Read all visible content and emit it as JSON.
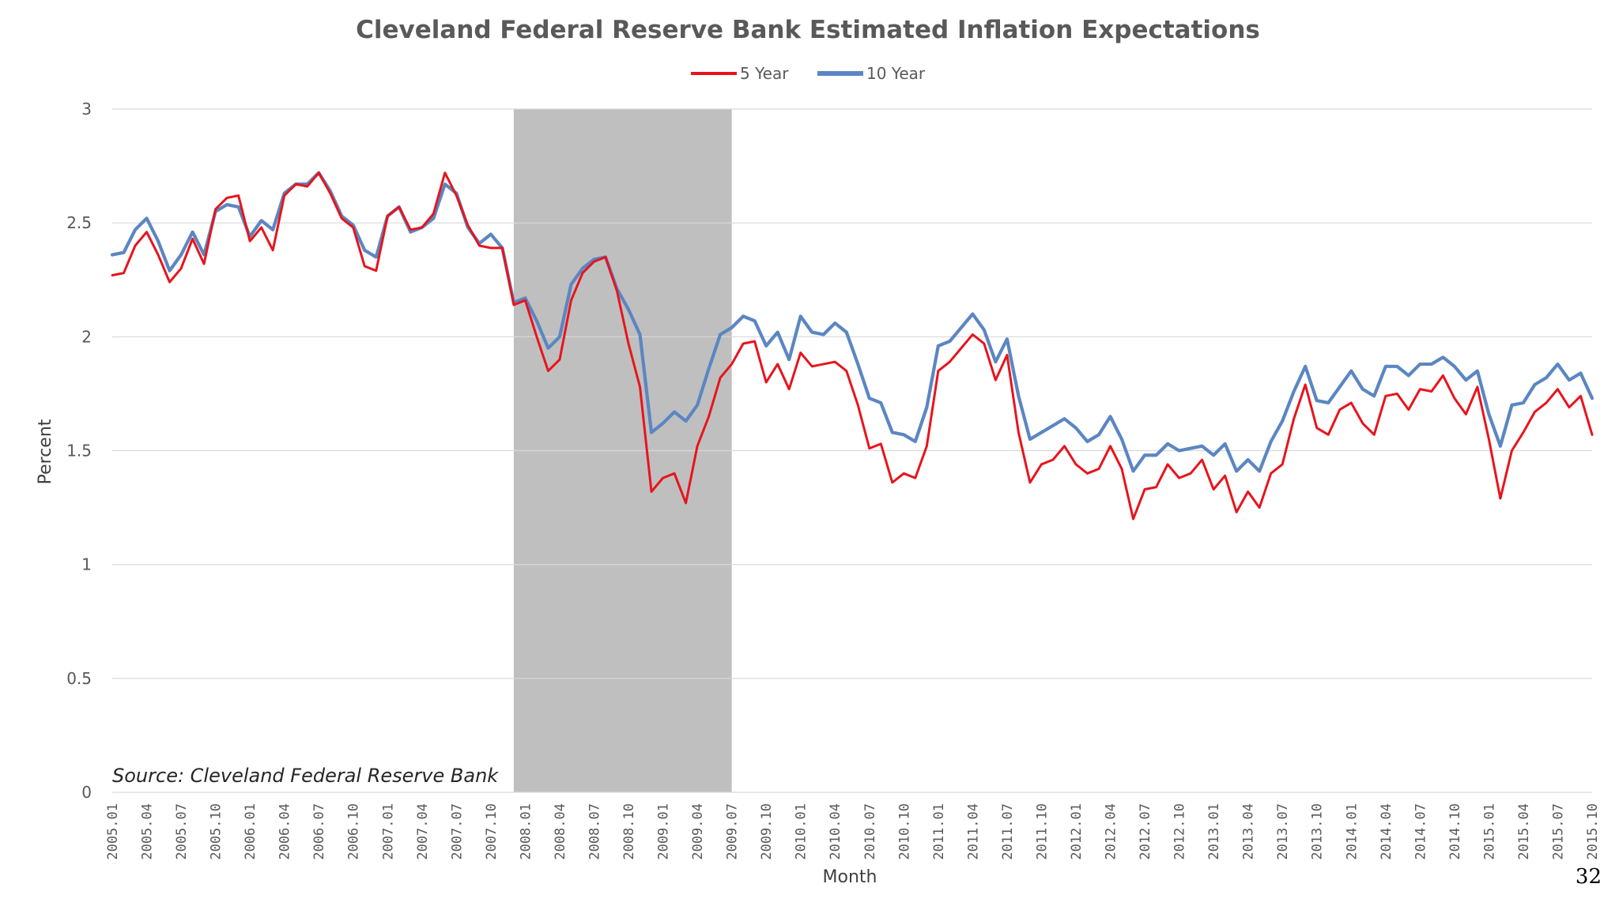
{
  "chart_data": {
    "type": "line",
    "title": "Cleveland Federal Reserve Bank Estimated Inflation Expectations",
    "xlabel": "Month",
    "ylabel": "Percent",
    "ylim": [
      0,
      3
    ],
    "yticks": [
      "0",
      "0.5",
      "1",
      "1.5",
      "2",
      "2.5",
      "3"
    ],
    "grid": true,
    "legend_position": "top-center",
    "x_tick_labels": [
      "2005.01",
      "2005.04",
      "2005.07",
      "2005.10",
      "2006.01",
      "2006.04",
      "2006.07",
      "2006.10",
      "2007.01",
      "2007.04",
      "2007.07",
      "2007.10",
      "2008.01",
      "2008.04",
      "2008.07",
      "2008.10",
      "2009.01",
      "2009.04",
      "2009.07",
      "2009.10",
      "2010.01",
      "2010.04",
      "2010.07",
      "2010.10",
      "2011.01",
      "2011.04",
      "2011.07",
      "2011.10",
      "2012.01",
      "2012.04",
      "2012.07",
      "2012.10",
      "2013.01",
      "2013.04",
      "2013.07",
      "2013.10",
      "2014.01",
      "2014.04",
      "2014.07",
      "2014.10",
      "2015.01",
      "2015.04",
      "2015.07",
      "2015.10"
    ],
    "x_start": "2005.01",
    "recession_shade": {
      "start_index": 35,
      "end_index": 54,
      "color": "#bfbfbf"
    },
    "series": [
      {
        "name": "5 Year",
        "color": "#e8141c",
        "values": [
          2.27,
          2.28,
          2.4,
          2.46,
          2.36,
          2.24,
          2.3,
          2.43,
          2.32,
          2.56,
          2.61,
          2.62,
          2.42,
          2.48,
          2.38,
          2.62,
          2.67,
          2.66,
          2.72,
          2.63,
          2.52,
          2.48,
          2.31,
          2.29,
          2.53,
          2.57,
          2.47,
          2.48,
          2.54,
          2.72,
          2.62,
          2.49,
          2.4,
          2.39,
          2.39,
          2.14,
          2.16,
          2.0,
          1.85,
          1.9,
          2.16,
          2.28,
          2.33,
          2.35,
          2.2,
          1.97,
          1.78,
          1.32,
          1.38,
          1.4,
          1.27,
          1.52,
          1.65,
          1.82,
          1.88,
          1.97,
          1.98,
          1.8,
          1.88,
          1.77,
          1.93,
          1.87,
          1.88,
          1.89,
          1.85,
          1.7,
          1.51,
          1.53,
          1.36,
          1.4,
          1.38,
          1.52,
          1.85,
          1.89,
          1.95,
          2.01,
          1.97,
          1.81,
          1.92,
          1.58,
          1.36,
          1.44,
          1.46,
          1.52,
          1.44,
          1.4,
          1.42,
          1.52,
          1.42,
          1.2,
          1.33,
          1.34,
          1.44,
          1.38,
          1.4,
          1.46,
          1.33,
          1.39,
          1.23,
          1.32,
          1.25,
          1.4,
          1.44,
          1.64,
          1.79,
          1.6,
          1.57,
          1.68,
          1.71,
          1.62,
          1.57,
          1.74,
          1.75,
          1.68,
          1.77,
          1.76,
          1.83,
          1.73,
          1.66,
          1.78,
          1.55,
          1.29,
          1.5,
          1.58,
          1.67,
          1.71,
          1.77,
          1.69,
          1.74,
          1.57
        ]
      },
      {
        "name": "10 Year",
        "color": "#5b86c2",
        "values": [
          2.36,
          2.37,
          2.47,
          2.52,
          2.42,
          2.29,
          2.36,
          2.46,
          2.36,
          2.55,
          2.58,
          2.57,
          2.44,
          2.51,
          2.47,
          2.63,
          2.67,
          2.67,
          2.72,
          2.64,
          2.53,
          2.49,
          2.38,
          2.35,
          2.53,
          2.57,
          2.46,
          2.48,
          2.52,
          2.67,
          2.63,
          2.48,
          2.41,
          2.45,
          2.39,
          2.15,
          2.17,
          2.07,
          1.95,
          2.0,
          2.23,
          2.3,
          2.34,
          2.35,
          2.21,
          2.12,
          2.01,
          1.58,
          1.62,
          1.67,
          1.63,
          1.7,
          1.86,
          2.01,
          2.04,
          2.09,
          2.07,
          1.96,
          2.02,
          1.9,
          2.09,
          2.02,
          2.01,
          2.06,
          2.02,
          1.88,
          1.73,
          1.71,
          1.58,
          1.57,
          1.54,
          1.69,
          1.96,
          1.98,
          2.04,
          2.1,
          2.03,
          1.89,
          1.99,
          1.74,
          1.55,
          1.58,
          1.61,
          1.64,
          1.6,
          1.54,
          1.57,
          1.65,
          1.55,
          1.41,
          1.48,
          1.48,
          1.53,
          1.5,
          1.51,
          1.52,
          1.48,
          1.53,
          1.41,
          1.46,
          1.41,
          1.54,
          1.63,
          1.76,
          1.87,
          1.72,
          1.71,
          1.78,
          1.85,
          1.77,
          1.74,
          1.87,
          1.87,
          1.83,
          1.88,
          1.88,
          1.91,
          1.87,
          1.81,
          1.85,
          1.66,
          1.52,
          1.7,
          1.71,
          1.79,
          1.82,
          1.88,
          1.81,
          1.84,
          1.73
        ]
      }
    ]
  },
  "source_note": "Source: Cleveland Federal Reserve Bank",
  "page_number": "32"
}
